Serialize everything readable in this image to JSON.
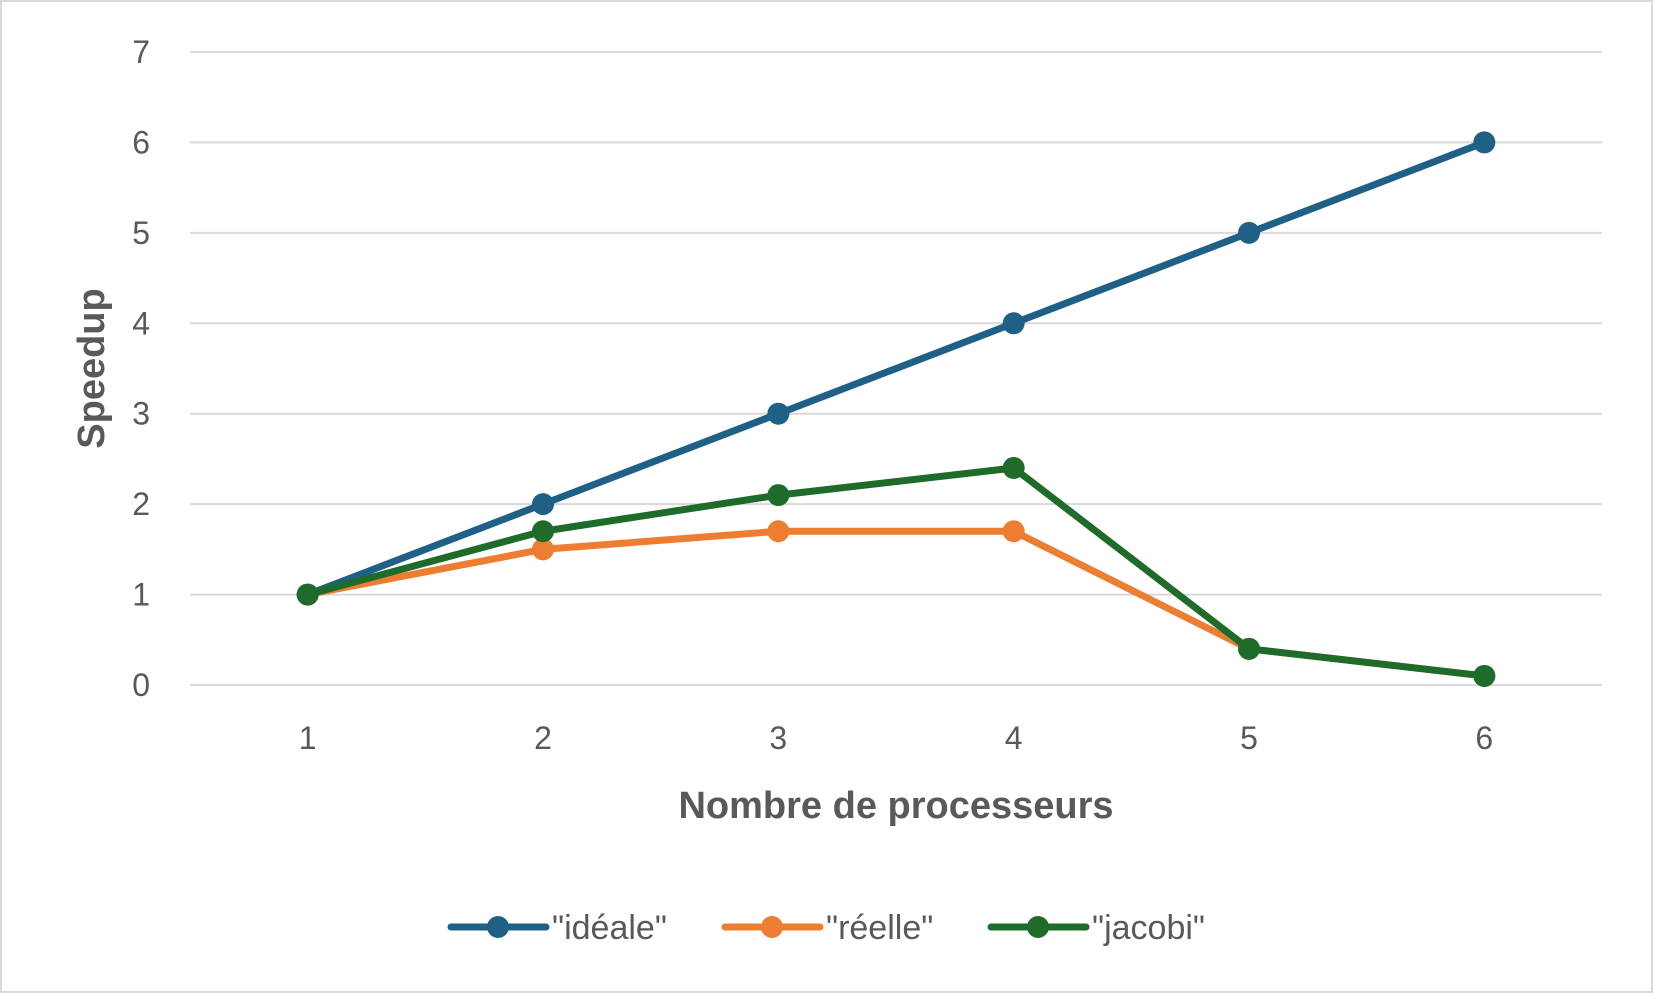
{
  "chart_data": {
    "type": "line",
    "title": "",
    "xlabel": "Nombre de processeurs",
    "ylabel": "Speedup",
    "categories": [
      "1",
      "2",
      "3",
      "4",
      "5",
      "6"
    ],
    "ylim": [
      0,
      7
    ],
    "yticks": [
      "0",
      "1",
      "2",
      "3",
      "4",
      "5",
      "6",
      "7"
    ],
    "grid": "horizontal",
    "legend_position": "bottom",
    "series": [
      {
        "name": "\"idéale\"",
        "color": "#1f6086",
        "values": [
          1,
          2,
          3,
          4,
          5,
          6
        ]
      },
      {
        "name": "\"réelle\"",
        "color": "#ed7d31",
        "values": [
          1,
          1.5,
          1.7,
          1.7,
          0.4,
          0.1
        ]
      },
      {
        "name": "\"jacobi\"",
        "color": "#1e6b2a",
        "values": [
          1,
          1.7,
          2.1,
          2.4,
          0.4,
          0.1
        ]
      }
    ]
  }
}
